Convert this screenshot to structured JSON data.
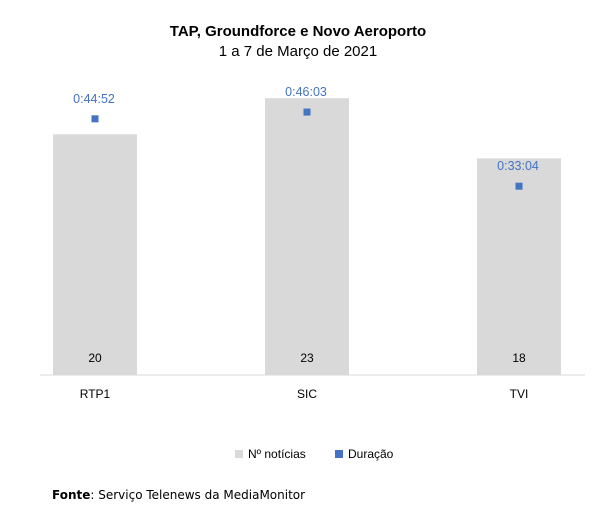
{
  "chart_data": {
    "type": "bar",
    "title": "TAP, Groundforce e Novo Aeroporto",
    "subtitle": "1 a 7 de Março de 2021",
    "categories": [
      "RTP1",
      "SIC",
      "TVI"
    ],
    "series": [
      {
        "name": "Nº notícias",
        "kind": "bar",
        "color": "#D9D9D9",
        "values": [
          20,
          23,
          18
        ],
        "labels": [
          "20",
          "23",
          "18"
        ]
      },
      {
        "name": "Duração",
        "kind": "marker",
        "color": "#4472C4",
        "values_seconds": [
          2692,
          2763,
          1984
        ],
        "labels": [
          "0:44:52",
          "0:46:03",
          "0:33:04"
        ]
      }
    ],
    "bar_ylim": [
      0,
      28
    ],
    "duration_ylim_seconds": [
      0,
      3100
    ],
    "legend": [
      "Nº notícias",
      "Duração"
    ],
    "legend_position": "bottom",
    "grid": false
  },
  "source": {
    "label": "Fonte",
    "text": "Serviço Telenews da MediaMonitor"
  }
}
